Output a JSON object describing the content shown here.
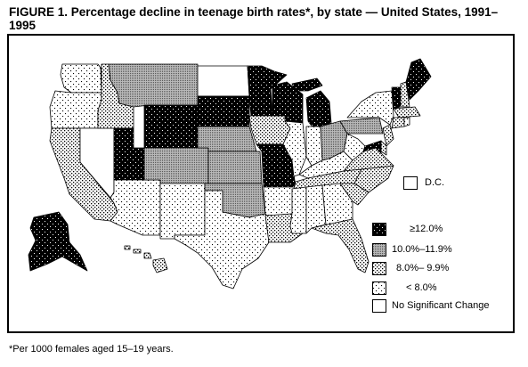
{
  "figure": {
    "title": "FIGURE 1. Percentage decline in teenage birth rates*, by state — United States, 1991–1995",
    "footnote": "*Per 1000 females aged 15–19 years."
  },
  "legend": {
    "dc_label": "D.C.",
    "items": [
      {
        "label": "≥12.0%",
        "pattern": "black"
      },
      {
        "label": "10.0%–11.9%",
        "pattern": "dense-gray"
      },
      {
        "label": "8.0%– 9.9%",
        "pattern": "dots"
      },
      {
        "label": "< 8.0%",
        "pattern": "light-dots"
      },
      {
        "label": "No Significant Change",
        "pattern": "white"
      }
    ]
  },
  "state_categories": {
    "WA": "light-dots",
    "OR": "light-dots",
    "CA": "dots",
    "NV": "white",
    "ID": "dots",
    "MT": "dense-gray",
    "WY": "black",
    "UT": "black",
    "AZ": "light-dots",
    "CO": "dense-gray",
    "NM": "light-dots",
    "ND": "white",
    "SD": "black",
    "NE": "dense-gray",
    "KS": "dense-gray",
    "OK": "dense-gray",
    "TX": "light-dots",
    "MN": "black",
    "IA": "dots",
    "MO": "black",
    "AR": "light-dots",
    "LA": "dots",
    "WI": "black",
    "IL": "light-dots",
    "MI": "black",
    "IN": "light-dots",
    "OH": "dense-gray",
    "KY": "light-dots",
    "TN": "dots",
    "MS": "light-dots",
    "AL": "light-dots",
    "GA": "light-dots",
    "FL": "dots",
    "SC": "dots",
    "NC": "dots",
    "VA": "dots",
    "WV": "light-dots",
    "PA": "dense-gray",
    "NY": "light-dots",
    "VT": "black",
    "NH": "dots",
    "ME": "black",
    "MA": "dots",
    "CT": "dots",
    "RI": "light-dots",
    "NJ": "dots",
    "DE": "dots",
    "MD": "black",
    "AK": "black",
    "HI": "dots",
    "DC": "white"
  }
}
